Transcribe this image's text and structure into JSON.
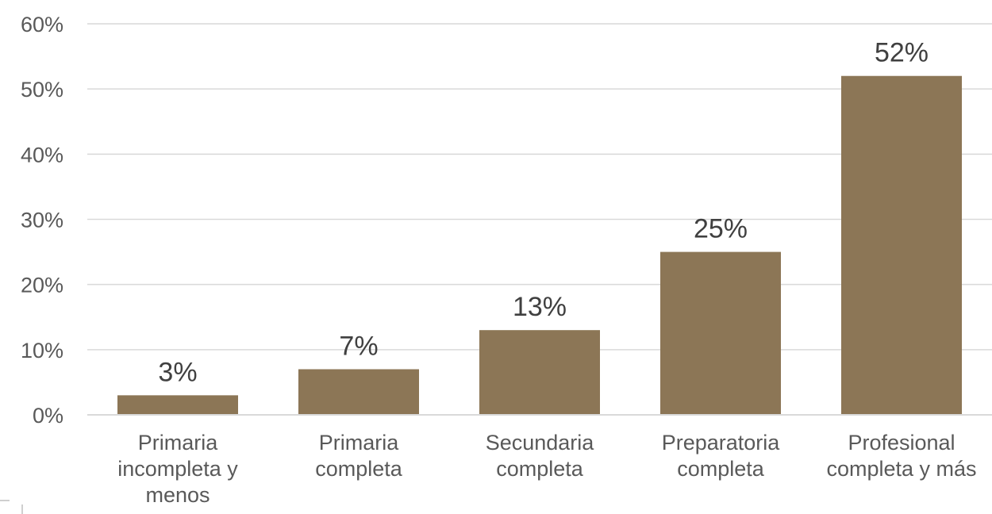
{
  "chart_data": {
    "type": "bar",
    "title": "",
    "xlabel": "",
    "ylabel": "",
    "ylim": [
      0,
      60
    ],
    "yticks": [
      0,
      10,
      20,
      30,
      40,
      50,
      60
    ],
    "ytick_labels": [
      "0%",
      "10%",
      "20%",
      "30%",
      "40%",
      "50%",
      "60%"
    ],
    "categories": [
      [
        "Primaria",
        "incompleta y",
        "menos"
      ],
      [
        "Primaria",
        "completa"
      ],
      [
        "Secundaria",
        "completa"
      ],
      [
        "Preparatoria",
        "completa"
      ],
      [
        "Profesional",
        "completa y más"
      ]
    ],
    "values": [
      3,
      7,
      13,
      25,
      52
    ],
    "data_labels": [
      "3%",
      "7%",
      "13%",
      "25%",
      "52%"
    ],
    "bar_color": "#8c7656",
    "grid": true,
    "legend": "none"
  }
}
